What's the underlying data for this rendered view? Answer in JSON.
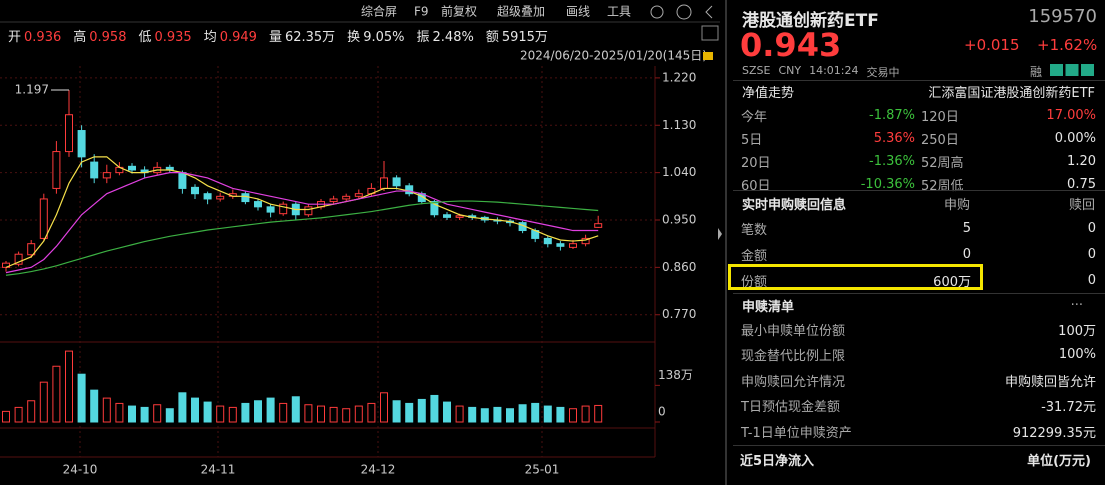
{
  "toolbar": [
    "综合屏",
    "F9",
    "前复权",
    "超级叠加",
    "画线",
    "工具"
  ],
  "quote_bar": [
    [
      "开",
      "0.936"
    ],
    [
      "高",
      "0.958"
    ],
    [
      "低",
      "0.935"
    ],
    [
      "均",
      "0.949"
    ],
    [
      "量",
      "62.35万"
    ],
    [
      "换",
      "9.05%"
    ],
    [
      "振",
      "2.48%"
    ],
    [
      "额",
      "5915万"
    ]
  ],
  "date_range": "2024/06/20-2025/01/20(145日)",
  "price_chart": {
    "ylim": [
      0.722,
      1.235
    ],
    "yticks": [
      {
        "value": 1.22,
        "label": "1.220"
      },
      {
        "value": 1.13,
        "label": "1.130"
      },
      {
        "value": 1.04,
        "label": "1.040"
      },
      {
        "value": 0.95,
        "label": "0.950"
      },
      {
        "value": 0.86,
        "label": "0.860"
      },
      {
        "value": 0.77,
        "label": "0.770"
      }
    ],
    "peak_label": 1.197,
    "candles": [
      [
        0.86,
        0.872,
        0.852,
        0.868
      ],
      [
        0.866,
        0.89,
        0.862,
        0.885
      ],
      [
        0.884,
        0.912,
        0.878,
        0.905
      ],
      [
        0.915,
        1.0,
        0.91,
        0.99
      ],
      [
        1.01,
        1.1,
        1.0,
        1.08
      ],
      [
        1.08,
        1.197,
        1.07,
        1.15
      ],
      [
        1.12,
        1.13,
        1.05,
        1.07
      ],
      [
        1.06,
        1.075,
        1.02,
        1.03
      ],
      [
        1.03,
        1.055,
        1.02,
        1.04
      ],
      [
        1.04,
        1.06,
        1.035,
        1.05
      ],
      [
        1.052,
        1.058,
        1.038,
        1.045
      ],
      [
        1.045,
        1.052,
        1.03,
        1.04
      ],
      [
        1.04,
        1.06,
        1.036,
        1.05
      ],
      [
        1.05,
        1.055,
        1.04,
        1.045
      ],
      [
        1.04,
        1.044,
        1.0,
        1.01
      ],
      [
        1.012,
        1.018,
        0.99,
        1.0
      ],
      [
        1.0,
        1.004,
        0.98,
        0.99
      ],
      [
        0.99,
        1.002,
        0.985,
        0.995
      ],
      [
        0.995,
        1.008,
        0.99,
        1.0
      ],
      [
        1.0,
        1.004,
        0.98,
        0.985
      ],
      [
        0.985,
        0.99,
        0.968,
        0.975
      ],
      [
        0.975,
        0.98,
        0.955,
        0.965
      ],
      [
        0.962,
        0.985,
        0.958,
        0.98
      ],
      [
        0.98,
        0.984,
        0.95,
        0.96
      ],
      [
        0.96,
        0.98,
        0.956,
        0.975
      ],
      [
        0.975,
        0.99,
        0.97,
        0.985
      ],
      [
        0.985,
        0.996,
        0.98,
        0.99
      ],
      [
        0.99,
        1.0,
        0.984,
        0.995
      ],
      [
        0.995,
        1.008,
        0.99,
        1.0
      ],
      [
        1.0,
        1.02,
        0.996,
        1.01
      ],
      [
        1.01,
        1.062,
        1.005,
        1.03
      ],
      [
        1.03,
        1.035,
        1.008,
        1.015
      ],
      [
        1.015,
        1.02,
        0.995,
        1.0
      ],
      [
        1.0,
        1.004,
        0.98,
        0.985
      ],
      [
        0.985,
        0.988,
        0.955,
        0.96
      ],
      [
        0.96,
        0.965,
        0.95,
        0.955
      ],
      [
        0.955,
        0.962,
        0.95,
        0.958
      ],
      [
        0.958,
        0.962,
        0.95,
        0.955
      ],
      [
        0.955,
        0.958,
        0.945,
        0.95
      ],
      [
        0.95,
        0.955,
        0.942,
        0.948
      ],
      [
        0.948,
        0.952,
        0.938,
        0.945
      ],
      [
        0.945,
        0.948,
        0.925,
        0.93
      ],
      [
        0.93,
        0.934,
        0.908,
        0.915
      ],
      [
        0.915,
        0.92,
        0.898,
        0.905
      ],
      [
        0.905,
        0.91,
        0.892,
        0.9
      ],
      [
        0.898,
        0.912,
        0.895,
        0.905
      ],
      [
        0.905,
        0.922,
        0.9,
        0.915
      ],
      [
        0.936,
        0.958,
        0.935,
        0.943
      ]
    ],
    "ma_lines": [
      {
        "color": "#f5e04a",
        "values": [
          0.86,
          0.87,
          0.88,
          0.91,
          0.96,
          1.02,
          1.06,
          1.07,
          1.07,
          1.05,
          1.04,
          1.04,
          1.045,
          1.045,
          1.04,
          1.03,
          1.015,
          1.005,
          0.995,
          0.995,
          0.99,
          0.98,
          0.975,
          0.97,
          0.97,
          0.975,
          0.98,
          0.985,
          0.99,
          1.0,
          1.01,
          1.01,
          1.005,
          0.995,
          0.98,
          0.97,
          0.96,
          0.955,
          0.952,
          0.95,
          0.947,
          0.94,
          0.93,
          0.92,
          0.912,
          0.91,
          0.912,
          0.92
        ]
      },
      {
        "color": "#e040e0",
        "values": [
          0.85,
          0.855,
          0.86,
          0.875,
          0.9,
          0.93,
          0.96,
          0.98,
          1.0,
          1.01,
          1.02,
          1.03,
          1.035,
          1.04,
          1.04,
          1.035,
          1.03,
          1.02,
          1.01,
          1.005,
          1.0,
          0.995,
          0.99,
          0.985,
          0.98,
          0.98,
          0.98,
          0.985,
          0.99,
          0.995,
          1.0,
          1.005,
          1.005,
          1.0,
          0.99,
          0.98,
          0.975,
          0.97,
          0.965,
          0.96,
          0.955,
          0.95,
          0.945,
          0.94,
          0.935,
          0.93,
          0.93,
          0.93
        ]
      },
      {
        "color": "#3cb043",
        "values": [
          0.845,
          0.848,
          0.852,
          0.857,
          0.863,
          0.87,
          0.877,
          0.884,
          0.891,
          0.897,
          0.903,
          0.909,
          0.914,
          0.919,
          0.923,
          0.927,
          0.931,
          0.934,
          0.937,
          0.94,
          0.943,
          0.946,
          0.948,
          0.95,
          0.952,
          0.954,
          0.957,
          0.96,
          0.963,
          0.966,
          0.97,
          0.974,
          0.978,
          0.981,
          0.983,
          0.985,
          0.986,
          0.986,
          0.985,
          0.984,
          0.982,
          0.98,
          0.978,
          0.976,
          0.974,
          0.972,
          0.97,
          0.968
        ]
      }
    ]
  },
  "volume_chart": {
    "ylim": [
      0,
      290
    ],
    "yticks": [
      {
        "value": 138,
        "label": "138万"
      },
      0
    ],
    "values": [
      40,
      55,
      80,
      150,
      210,
      267,
      180,
      120,
      90,
      70,
      60,
      55,
      65,
      50,
      110,
      90,
      75,
      60,
      55,
      70,
      80,
      90,
      70,
      95,
      65,
      60,
      55,
      50,
      60,
      70,
      110,
      80,
      70,
      85,
      100,
      75,
      60,
      55,
      50,
      55,
      50,
      65,
      70,
      60,
      55,
      50,
      60,
      62.35
    ]
  },
  "x_labels": [
    "24-10",
    "24-11",
    "24-12",
    "25-01"
  ],
  "quote": {
    "name": "港股通创新药ETF",
    "code": "159570",
    "price": "0.943",
    "change": "+0.015",
    "change_pct": "+1.62%",
    "exchange": "SZSE",
    "currency": "CNY",
    "time": "14:01:24",
    "status": "交易中",
    "badge": "融"
  },
  "nav": {
    "title": "净值走势",
    "fund": "汇添富国证港股通创新药ETF",
    "rows": [
      [
        "今年",
        "-1.87%",
        "120日",
        "17.00%"
      ],
      [
        "5日",
        "5.36%",
        "250日",
        "0.00%"
      ],
      [
        "20日",
        "-1.36%",
        "52周高",
        "1.20"
      ],
      [
        "60日",
        "-10.36%",
        "52周低",
        "0.75"
      ]
    ]
  },
  "creation": {
    "title": "实时申购赎回信息",
    "headers": [
      "申购",
      "赎回"
    ],
    "rows": [
      [
        "笔数",
        "5",
        "0"
      ],
      [
        "金额",
        "0",
        "0"
      ],
      [
        "份额",
        "600万",
        "0"
      ]
    ]
  },
  "list": {
    "title": "申赎清单",
    "more": "...",
    "rows": [
      [
        "最小申赎单位份额",
        "100万"
      ],
      [
        "现金替代比例上限",
        "100%"
      ],
      [
        "申购赎回允许情况",
        "申购赎回皆允许"
      ],
      [
        "T日预估现金差额",
        "-31.72元"
      ],
      [
        "T-1日单位申赎资产",
        "912299.35元"
      ]
    ]
  },
  "footer": {
    "left": "近5日净流入",
    "right": "单位(万元)"
  }
}
